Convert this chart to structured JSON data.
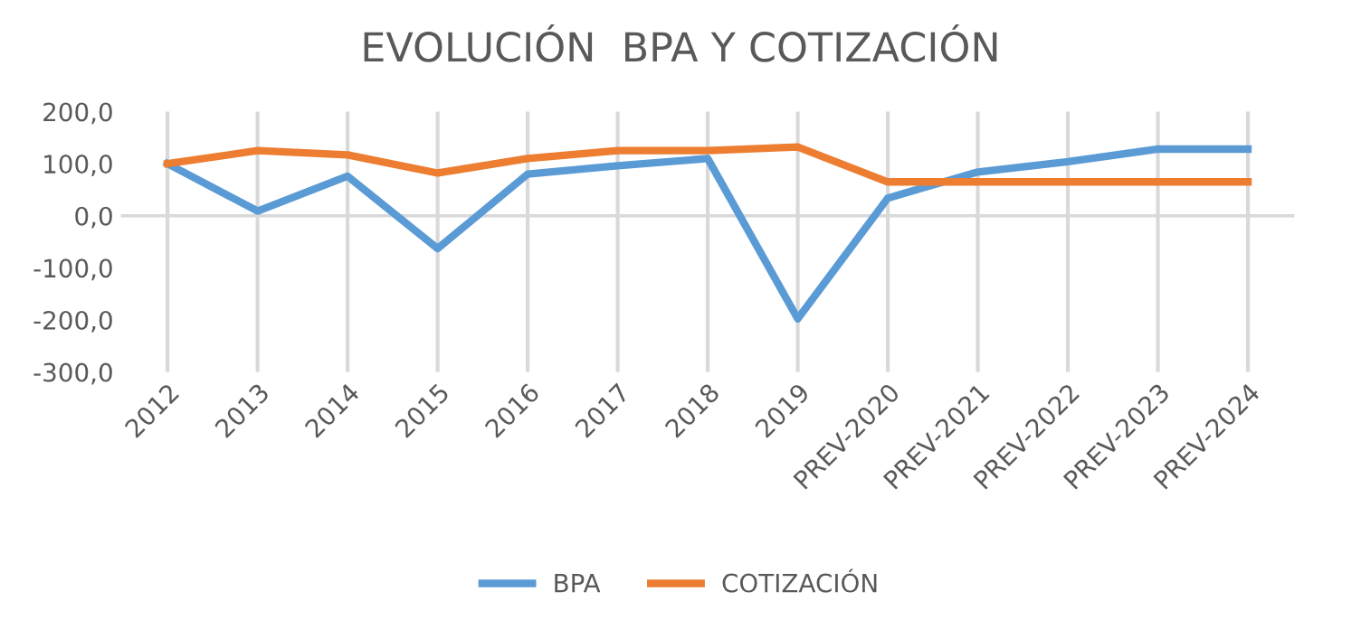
{
  "chart_data": {
    "type": "line",
    "title": "EVOLUCIÓN  BPA Y COTIZACIÓN",
    "categories": [
      "2012",
      "2013",
      "2014",
      "2015",
      "2016",
      "2017",
      "2018",
      "2019",
      "PREV-2020",
      "PREV-2021",
      "PREV-2022",
      "PREV-2023",
      "PREV-2024"
    ],
    "series": [
      {
        "name": "BPA",
        "color": "#5b9bd5",
        "values": [
          100,
          9,
          76,
          -63,
          80,
          96,
          110,
          -198,
          34,
          84,
          104,
          128,
          128
        ]
      },
      {
        "name": "COTIZACIÓN",
        "color": "#ed7d31",
        "values": [
          100,
          125,
          117,
          82,
          110,
          125,
          125,
          132,
          65,
          65,
          65,
          65,
          65
        ]
      }
    ],
    "ylim": [
      -300,
      200
    ],
    "yticks": [
      {
        "value": 200,
        "label": "200,0"
      },
      {
        "value": 100,
        "label": "100,0"
      },
      {
        "value": 0,
        "label": "0,0"
      },
      {
        "value": -100,
        "label": "-100,0"
      },
      {
        "value": -200,
        "label": "-200,0"
      },
      {
        "value": -300,
        "label": "-300,0"
      }
    ],
    "grid": "x",
    "legend": "bottom",
    "marker": "none",
    "line_style": "solid"
  }
}
